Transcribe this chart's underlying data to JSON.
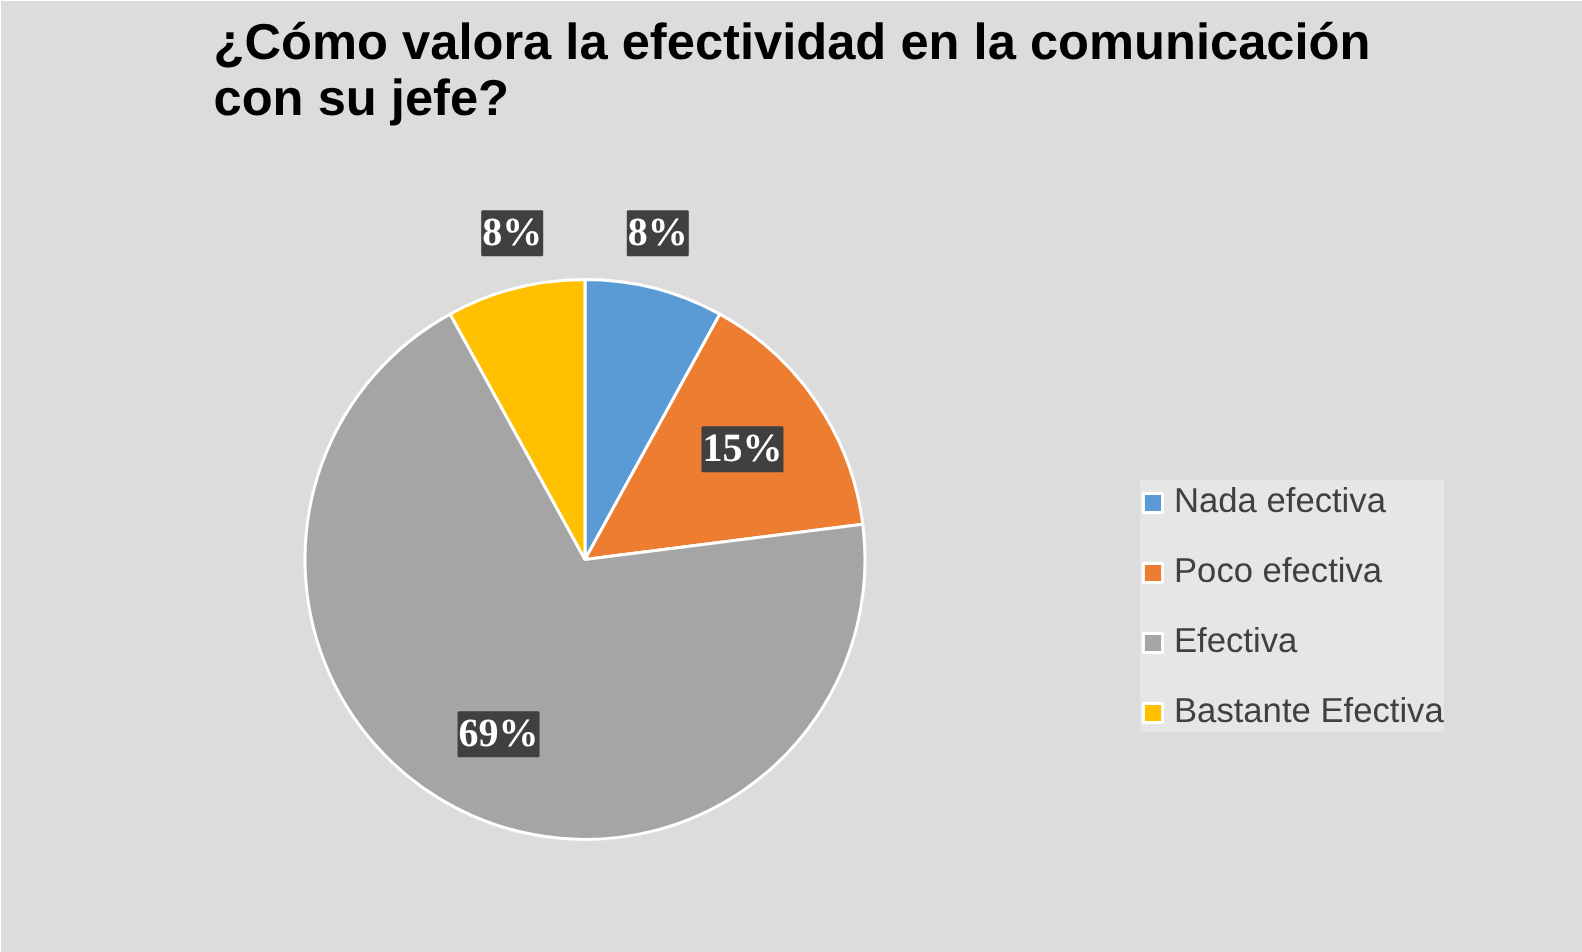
{
  "chart_data": {
    "type": "pie",
    "title": "¿Cómo valora la efectividad en la comunicación con su jefe?",
    "categories": [
      "Nada efectiva",
      "Poco efectiva",
      "Efectiva",
      "Bastante Efectiva"
    ],
    "values": [
      8,
      15,
      69,
      8
    ],
    "colors": [
      "#5b9bd5",
      "#ed7d31",
      "#a5a5a5",
      "#ffc000"
    ],
    "value_labels": [
      "8%",
      "15%",
      "69%",
      "8%"
    ],
    "legend": "right"
  }
}
